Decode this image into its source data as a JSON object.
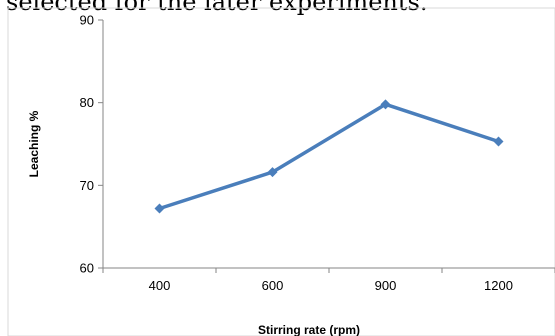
{
  "document": {
    "text_above": "selected for the later experiments."
  },
  "chart_data": {
    "type": "line",
    "categories": [
      "400",
      "600",
      "900",
      "1200"
    ],
    "series": [
      {
        "values": [
          67.2,
          71.6,
          79.8,
          75.3
        ],
        "color": "#4a7ebb",
        "marker": "diamond"
      }
    ],
    "xlabel": "Stirring  rate (rpm)",
    "ylabel": "Leaching %",
    "ylim": [
      60,
      90
    ],
    "yticks": [
      60,
      70,
      80,
      90
    ],
    "grid": false,
    "legend": "none"
  }
}
